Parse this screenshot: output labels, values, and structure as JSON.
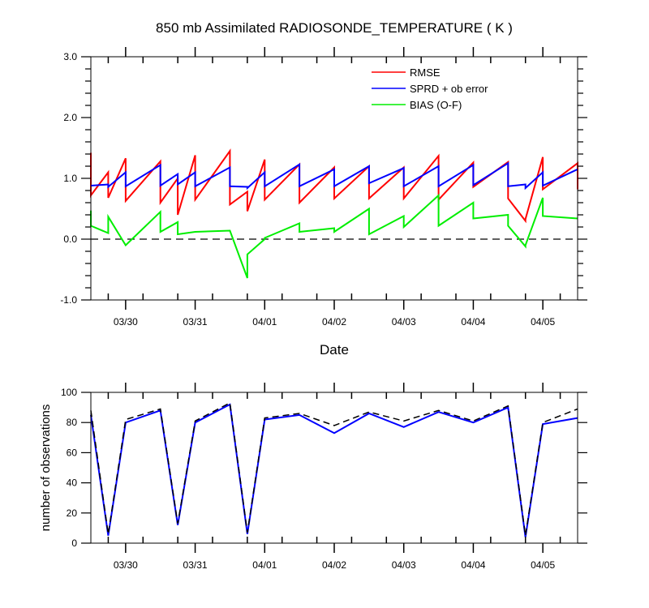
{
  "chart_data": [
    {
      "type": "line",
      "title": "850 mb Assimilated RADIOSONDE_TEMPERATURE ( K )",
      "xlabel": "Date",
      "ylabel": "",
      "xlim": [
        0,
        7
      ],
      "ylim": [
        -1.0,
        3.0
      ],
      "x_ticks": [
        0.5,
        1.5,
        2.5,
        3.5,
        4.5,
        5.5,
        6.5
      ],
      "x_tick_labels": [
        "03/30",
        "03/31",
        "04/01",
        "04/02",
        "04/03",
        "04/04",
        "04/05"
      ],
      "y_ticks": [
        -1.0,
        0.0,
        1.0,
        2.0,
        3.0
      ],
      "y_tick_labels": [
        "-1.0",
        "0.0",
        "1.0",
        "2.0",
        "3.0"
      ],
      "zero_line": true,
      "legend": "top-right",
      "legend_entries": [
        "RMSE",
        "SPRD + ob error",
        "BIAS (O-F)"
      ],
      "series": [
        {
          "name": "RMSE",
          "color": "#ff0000",
          "x": [
            0,
            0,
            0.25,
            0.25,
            0.5,
            0.5,
            1.0,
            1.0,
            1.25,
            1.25,
            1.5,
            1.5,
            2.0,
            2.0,
            2.25,
            2.25,
            2.5,
            2.5,
            3.0,
            3.0,
            3.5,
            3.5,
            4.0,
            4.0,
            4.5,
            4.5,
            5.0,
            5.0,
            5.5,
            5.5,
            6.0,
            6.0,
            6.25,
            6.25,
            6.5,
            6.5,
            7.0,
            7.0
          ],
          "y": [
            1.42,
            0.72,
            1.1,
            0.68,
            1.33,
            0.63,
            1.28,
            0.6,
            1.0,
            0.4,
            1.38,
            0.65,
            1.45,
            0.57,
            0.78,
            0.46,
            1.31,
            0.65,
            1.23,
            0.6,
            1.18,
            0.67,
            1.2,
            0.67,
            1.18,
            0.67,
            1.37,
            0.65,
            1.26,
            0.86,
            1.27,
            0.67,
            0.3,
            0.33,
            1.35,
            0.82,
            1.25,
            0.82
          ]
        },
        {
          "name": "SPRD + ob error",
          "color": "#0000ff",
          "x": [
            0,
            0.25,
            0.25,
            0.5,
            0.5,
            1.0,
            1.0,
            1.25,
            1.25,
            1.5,
            1.5,
            2.0,
            2.0,
            2.25,
            2.25,
            2.5,
            2.5,
            3.0,
            3.0,
            3.5,
            3.5,
            4.0,
            4.0,
            4.5,
            4.5,
            5.0,
            5.0,
            5.5,
            5.5,
            6.0,
            6.0,
            6.25,
            6.25,
            6.5,
            6.5,
            7.0
          ],
          "y": [
            0.88,
            0.9,
            0.86,
            1.1,
            0.87,
            1.22,
            0.88,
            1.07,
            0.9,
            1.1,
            0.87,
            1.18,
            0.87,
            0.86,
            0.84,
            1.1,
            0.87,
            1.23,
            0.87,
            1.15,
            0.87,
            1.2,
            0.92,
            1.17,
            0.87,
            1.2,
            0.87,
            1.22,
            0.89,
            1.25,
            0.87,
            0.9,
            0.84,
            1.1,
            0.88,
            1.15
          ]
        },
        {
          "name": "BIAS (O-F)",
          "color": "#00ee00",
          "x": [
            0,
            0,
            0.25,
            0.25,
            0.5,
            1.0,
            1.0,
            1.25,
            1.25,
            1.5,
            1.5,
            2.0,
            2.25,
            2.25,
            2.5,
            2.5,
            3.0,
            3.0,
            3.5,
            3.5,
            4.0,
            4.0,
            4.5,
            4.5,
            5.0,
            5.0,
            5.5,
            5.5,
            6.0,
            6.0,
            6.25,
            6.25,
            6.5,
            6.5,
            7.0
          ],
          "y": [
            0.47,
            0.22,
            0.1,
            0.37,
            -0.1,
            0.45,
            0.12,
            0.28,
            0.08,
            0.12,
            0.12,
            0.14,
            -0.64,
            -0.25,
            0.0,
            0.02,
            0.26,
            0.12,
            0.18,
            0.12,
            0.5,
            0.08,
            0.38,
            0.2,
            0.72,
            0.22,
            0.6,
            0.34,
            0.4,
            0.22,
            -0.12,
            -0.1,
            0.68,
            0.38,
            0.34
          ]
        }
      ]
    },
    {
      "type": "line",
      "title": "",
      "xlabel": "",
      "ylabel": "number of observations",
      "xlim": [
        0,
        7
      ],
      "ylim": [
        0,
        100
      ],
      "x_ticks": [
        0.5,
        1.5,
        2.5,
        3.5,
        4.5,
        5.5,
        6.5
      ],
      "x_tick_labels": [
        "03/30",
        "03/31",
        "04/01",
        "04/02",
        "04/03",
        "04/04",
        "04/05"
      ],
      "y_ticks": [
        0,
        20,
        40,
        60,
        80,
        100
      ],
      "y_tick_labels": [
        "0",
        "20",
        "40",
        "60",
        "80",
        "100"
      ],
      "series": [
        {
          "color": "#0000ff",
          "dash": false,
          "x": [
            0,
            0.25,
            0.5,
            1.0,
            1.25,
            1.5,
            2.0,
            2.25,
            2.5,
            3.0,
            3.5,
            4.0,
            4.5,
            5.0,
            5.5,
            6.0,
            6.25,
            6.5,
            7.0
          ],
          "y": [
            85,
            5,
            80,
            88,
            12,
            80,
            92,
            6,
            82,
            85,
            73,
            86,
            77,
            87,
            80,
            90,
            4,
            79,
            83
          ]
        },
        {
          "color": "#000000",
          "dash": true,
          "x": [
            0,
            0.25,
            0.5,
            1.0,
            1.25,
            1.5,
            2.0,
            2.25,
            2.5,
            3.0,
            3.5,
            4.0,
            4.5,
            5.0,
            5.5,
            6.0,
            6.25,
            6.5,
            7.0
          ],
          "y": [
            88,
            6,
            82,
            89,
            13,
            81,
            93,
            7,
            83,
            86,
            78,
            87,
            81,
            88,
            81,
            91,
            5,
            80,
            89
          ]
        }
      ]
    }
  ]
}
